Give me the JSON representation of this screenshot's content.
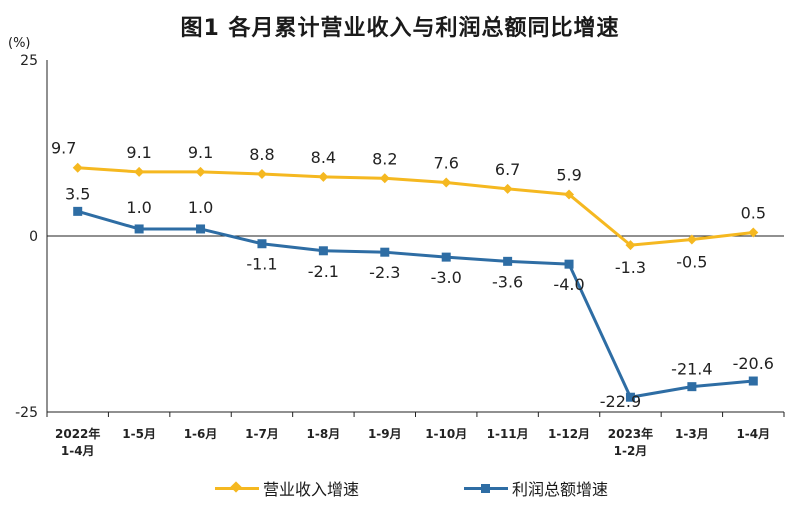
{
  "chart_data": {
    "type": "line",
    "title": "图1  各月累计营业收入与利润总额同比增速",
    "unit": "(%)",
    "categories": [
      [
        "2022年",
        "1-4月"
      ],
      [
        "1-5月"
      ],
      [
        "1-6月"
      ],
      [
        "1-7月"
      ],
      [
        "1-8月"
      ],
      [
        "1-9月"
      ],
      [
        "1-10月"
      ],
      [
        "1-11月"
      ],
      [
        "1-12月"
      ],
      [
        "2023年",
        "1-2月"
      ],
      [
        "1-3月"
      ],
      [
        "1-4月"
      ]
    ],
    "ylim": [
      -25,
      25
    ],
    "yticks": [
      "25",
      "0",
      "-25"
    ],
    "series": [
      {
        "name": "营业收入增速",
        "color": "#f5b820",
        "marker": "diamond",
        "values": [
          9.7,
          9.1,
          9.1,
          8.8,
          8.4,
          8.2,
          7.6,
          6.7,
          5.9,
          -1.3,
          -0.5,
          0.5
        ],
        "labels": [
          "9.7",
          "9.1",
          "9.1",
          "8.8",
          "8.4",
          "8.2",
          "7.6",
          "6.7",
          "5.9",
          "-1.3",
          "-0.5",
          "0.5"
        ]
      },
      {
        "name": "利润总额增速",
        "color": "#2e6da4",
        "marker": "square",
        "values": [
          3.5,
          1.0,
          1.0,
          -1.1,
          -2.1,
          -2.3,
          -3.0,
          -3.6,
          -4.0,
          -22.9,
          -21.4,
          -20.6
        ],
        "labels": [
          "3.5",
          "1.0",
          "1.0",
          "-1.1",
          "-2.1",
          "-2.3",
          "-3.0",
          "-3.6",
          "-4.0",
          "-22.9",
          "-21.4",
          "-20.6"
        ]
      }
    ],
    "legend_position": "bottom"
  }
}
